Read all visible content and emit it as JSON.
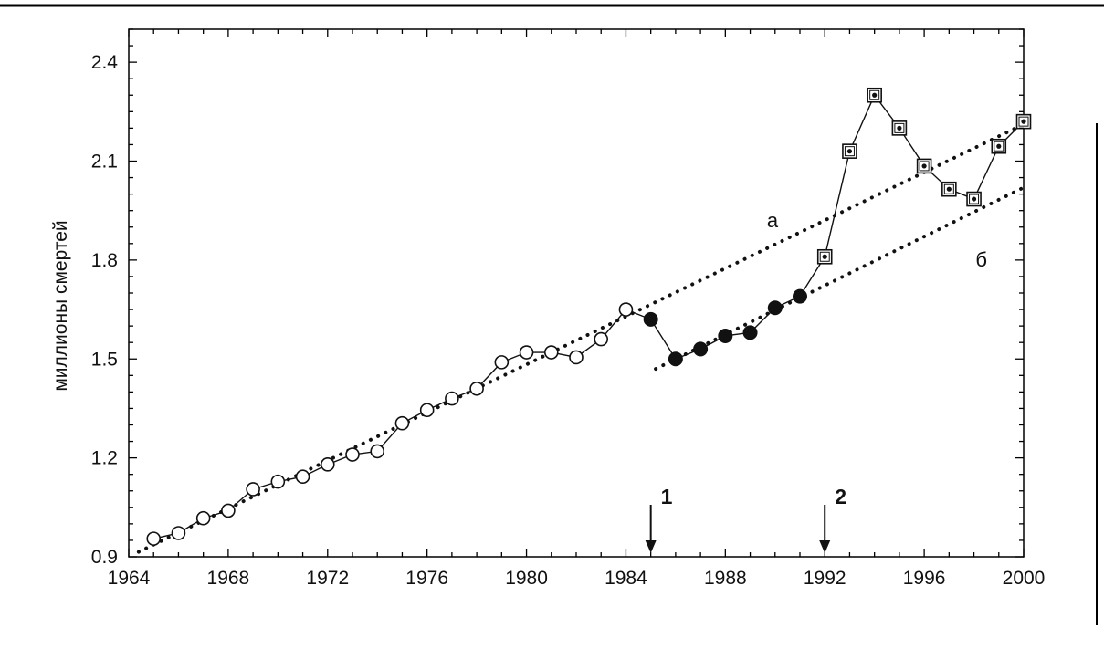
{
  "chart_data": {
    "type": "scatter",
    "title": "",
    "xlabel": "",
    "ylabel": "миллионы смертей",
    "xlim": [
      1964,
      2000
    ],
    "ylim": [
      0.9,
      2.5
    ],
    "x_ticks": [
      "1964",
      "1968",
      "1972",
      "1976",
      "1980",
      "1984",
      "1988",
      "1992",
      "1996",
      "2000"
    ],
    "y_ticks": [
      "0.9",
      "1.2",
      "1.5",
      "1.8",
      "2.1",
      "2.4"
    ],
    "grid": false,
    "series": [
      {
        "marker": "open-circle",
        "x": [
          1965,
          1966,
          1967,
          1968,
          1969,
          1970,
          1971,
          1972,
          1973,
          1974,
          1975,
          1976,
          1977,
          1978,
          1979,
          1980,
          1981,
          1982,
          1983,
          1984
        ],
        "y": [
          0.955,
          0.972,
          1.017,
          1.04,
          1.105,
          1.128,
          1.143,
          1.18,
          1.21,
          1.22,
          1.305,
          1.345,
          1.38,
          1.41,
          1.49,
          1.52,
          1.52,
          1.505,
          1.56,
          1.65
        ]
      },
      {
        "marker": "filled-circle",
        "x": [
          1985,
          1986,
          1987,
          1988,
          1989,
          1990,
          1991
        ],
        "y": [
          1.62,
          1.5,
          1.53,
          1.57,
          1.58,
          1.655,
          1.69
        ]
      },
      {
        "marker": "boxed-dot",
        "x": [
          1992,
          1993,
          1994,
          1995,
          1996,
          1997,
          1998,
          1999,
          2000
        ],
        "y": [
          1.81,
          2.13,
          2.3,
          2.2,
          2.085,
          2.015,
          1.985,
          2.145,
          2.22
        ]
      }
    ],
    "trend_lines": [
      {
        "label": "а",
        "from": [
          1964.4,
          0.915
        ],
        "to": [
          2000.5,
          2.23
        ]
      },
      {
        "label": "б",
        "from": [
          1985.2,
          1.47
        ],
        "to": [
          2000,
          2.02
        ]
      }
    ],
    "annotations": [
      {
        "text": "а",
        "x": 1989.9,
        "y": 1.9
      },
      {
        "text": "б",
        "x": 1998.3,
        "y": 1.78
      }
    ],
    "event_markers": [
      {
        "label": "1",
        "x": 1985
      },
      {
        "label": "2",
        "x": 1992
      }
    ]
  }
}
